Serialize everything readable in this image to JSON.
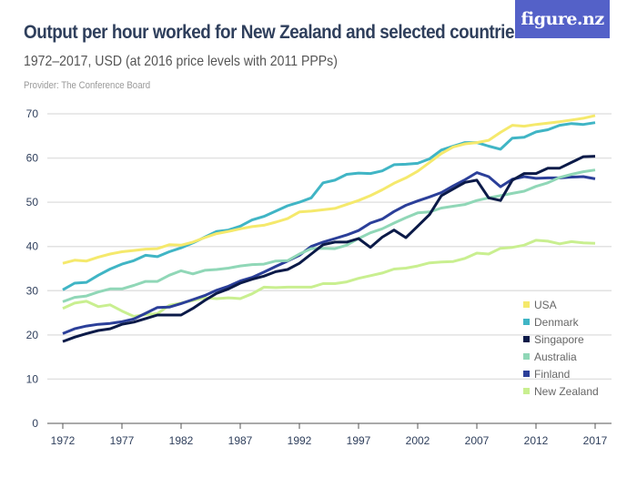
{
  "header": {
    "title": "Output per hour worked for New Zealand and selected countries",
    "subtitle": "1972–2017, USD (at 2016 price levels with 2011 PPPs)",
    "provider": "Provider: The Conference Board",
    "logo": "figure.nz",
    "logo_color": "#5461c8"
  },
  "chart_data": {
    "type": "line",
    "title": "Output per hour worked for New Zealand and selected countries",
    "subtitle": "1972–2017, USD (at 2016 price levels with 2011 PPPs)",
    "xlabel": "",
    "ylabel": "",
    "xlim": [
      1972,
      2017
    ],
    "ylim": [
      0,
      70
    ],
    "grid": true,
    "legend_position": "bottom-right",
    "x_ticks": [
      "1972",
      "1977",
      "1982",
      "1987",
      "1992",
      "1997",
      "2002",
      "2007",
      "2012",
      "2017"
    ],
    "y_ticks": [
      "0",
      "10",
      "20",
      "30",
      "40",
      "50",
      "60",
      "70"
    ],
    "x": [
      1972,
      1973,
      1974,
      1975,
      1976,
      1977,
      1978,
      1979,
      1980,
      1981,
      1982,
      1983,
      1984,
      1985,
      1986,
      1987,
      1988,
      1989,
      1990,
      1991,
      1992,
      1993,
      1994,
      1995,
      1996,
      1997,
      1998,
      1999,
      2000,
      2001,
      2002,
      2003,
      2004,
      2005,
      2006,
      2007,
      2008,
      2009,
      2010,
      2011,
      2012,
      2013,
      2014,
      2015,
      2016,
      2017
    ],
    "series": [
      {
        "name": "USA",
        "color": "#f5e96c",
        "values": [
          36.2,
          36.9,
          36.7,
          37.6,
          38.3,
          38.8,
          39.1,
          39.4,
          39.5,
          40.4,
          40.3,
          41.0,
          42.0,
          42.9,
          43.4,
          44.0,
          44.5,
          44.8,
          45.5,
          46.3,
          47.8,
          48.0,
          48.3,
          48.6,
          49.5,
          50.4,
          51.5,
          52.8,
          54.3,
          55.5,
          57.0,
          59.0,
          61.0,
          62.5,
          63.2,
          63.5,
          64.0,
          65.8,
          67.4,
          67.2,
          67.6,
          67.9,
          68.2,
          68.6,
          69.0,
          69.6
        ]
      },
      {
        "name": "Denmark",
        "color": "#40b5c5",
        "values": [
          30.2,
          31.7,
          31.9,
          33.5,
          34.9,
          36.0,
          36.8,
          38.0,
          37.7,
          38.8,
          39.7,
          40.8,
          42.1,
          43.4,
          43.7,
          44.6,
          46.0,
          46.8,
          48.0,
          49.2,
          50.0,
          51.0,
          54.4,
          55.0,
          56.3,
          56.6,
          56.5,
          57.1,
          58.5,
          58.6,
          58.8,
          59.8,
          61.8,
          62.7,
          63.5,
          63.5,
          62.7,
          62.0,
          64.5,
          64.7,
          65.9,
          66.4,
          67.4,
          67.8,
          67.6,
          68.0
        ]
      },
      {
        "name": "Singapore",
        "color": "#0b1a48",
        "values": [
          18.5,
          19.5,
          20.3,
          21.0,
          21.4,
          22.4,
          22.9,
          23.7,
          24.5,
          24.5,
          24.5,
          26.0,
          27.8,
          29.4,
          30.4,
          31.7,
          32.6,
          33.3,
          34.3,
          34.8,
          36.2,
          38.3,
          40.4,
          41.0,
          41.0,
          41.8,
          39.8,
          42.1,
          43.7,
          42.0,
          44.6,
          47.2,
          51.5,
          53.0,
          54.5,
          55.0,
          51.0,
          50.4,
          55.0,
          56.5,
          56.5,
          57.7,
          57.7,
          59.0,
          60.3,
          60.4
        ]
      },
      {
        "name": "Australia",
        "color": "#90d7b7",
        "values": [
          27.5,
          28.5,
          28.8,
          29.7,
          30.4,
          30.4,
          31.2,
          32.1,
          32.1,
          33.5,
          34.5,
          33.8,
          34.6,
          34.8,
          35.1,
          35.6,
          35.9,
          36.0,
          36.7,
          36.8,
          38.3,
          39.5,
          39.6,
          39.5,
          40.3,
          41.8,
          43.1,
          44.0,
          45.3,
          46.5,
          47.6,
          47.8,
          48.7,
          49.1,
          49.5,
          50.4,
          51.0,
          51.5,
          52.0,
          52.5,
          53.6,
          54.4,
          55.6,
          56.3,
          56.9,
          57.3
        ]
      },
      {
        "name": "Finland",
        "color": "#2b3f99",
        "values": [
          20.3,
          21.4,
          22.0,
          22.4,
          22.6,
          23.0,
          23.6,
          24.9,
          26.2,
          26.3,
          27.1,
          28.0,
          28.9,
          30.1,
          31.0,
          32.2,
          33.0,
          34.2,
          35.5,
          36.7,
          38.0,
          40.0,
          41.0,
          41.8,
          42.6,
          43.6,
          45.3,
          46.2,
          47.9,
          49.3,
          50.3,
          51.2,
          52.2,
          53.7,
          55.1,
          56.7,
          55.8,
          53.5,
          55.2,
          55.8,
          55.4,
          55.5,
          55.5,
          55.7,
          55.8,
          55.3
        ]
      },
      {
        "name": "New Zealand",
        "color": "#c9ef90",
        "values": [
          26.0,
          27.2,
          27.6,
          26.4,
          26.8,
          25.4,
          24.2,
          24.6,
          24.8,
          26.7,
          27.2,
          27.8,
          28.4,
          28.2,
          28.4,
          28.2,
          29.3,
          30.8,
          30.7,
          30.8,
          30.8,
          30.8,
          31.6,
          31.6,
          32.0,
          32.8,
          33.4,
          34.0,
          34.9,
          35.1,
          35.6,
          36.3,
          36.5,
          36.6,
          37.3,
          38.5,
          38.3,
          39.6,
          39.8,
          40.3,
          41.4,
          41.2,
          40.6,
          41.1,
          40.8,
          40.7
        ]
      }
    ]
  }
}
